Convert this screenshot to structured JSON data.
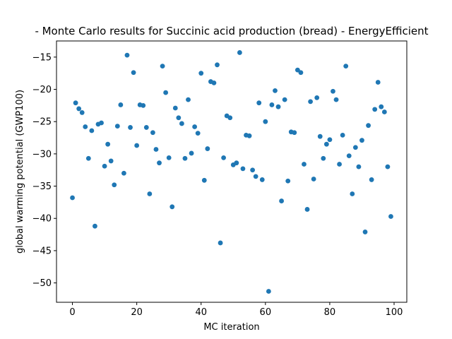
{
  "chart_data": {
    "type": "scatter",
    "title": "- Monte Carlo results for Succinic acid production (bread) - EnergyEfficient",
    "xlabel": "MC iteration",
    "ylabel": "global warming potential (GWP100)",
    "xlim": [
      -4.95,
      103.95
    ],
    "ylim": [
      -53.0,
      -12.5
    ],
    "xticks": [
      0,
      20,
      40,
      60,
      80,
      100
    ],
    "xtick_labels": [
      "0",
      "20",
      "40",
      "60",
      "80",
      "100"
    ],
    "yticks": [
      -50,
      -45,
      -40,
      -35,
      -30,
      -25,
      -20,
      -15
    ],
    "ytick_labels": [
      "−50",
      "−45",
      "−40",
      "−35",
      "−30",
      "−25",
      "−20",
      "−15"
    ],
    "grid": false,
    "legend": "none",
    "marker_color": "#1f77b4",
    "series": [
      {
        "x": [
          0,
          1,
          2,
          3,
          4,
          5,
          6,
          7,
          8,
          9,
          10,
          11,
          12,
          13,
          14,
          15,
          16,
          17,
          18,
          19,
          20,
          21,
          22,
          23,
          24,
          25,
          26,
          27,
          28,
          29,
          30,
          31,
          32,
          33,
          34,
          35,
          36,
          37,
          38,
          39,
          40,
          41,
          42,
          43,
          44,
          45,
          46,
          47,
          48,
          49,
          50,
          51,
          52,
          53,
          54,
          55,
          56,
          57,
          58,
          59,
          60,
          61,
          62,
          63,
          64,
          65,
          66,
          67,
          68,
          69,
          70,
          71,
          72,
          73,
          74,
          75,
          76,
          77,
          78,
          79,
          80,
          81,
          82,
          83,
          84,
          85,
          86,
          87,
          88,
          89,
          90,
          91,
          92,
          93,
          94,
          95,
          96,
          97,
          98,
          99
        ],
        "y": [
          -36.8,
          -22.1,
          -23.0,
          -23.6,
          -25.8,
          -30.7,
          -26.4,
          -41.2,
          -25.4,
          -25.2,
          -31.9,
          -28.5,
          -31.1,
          -34.8,
          -25.7,
          -22.4,
          -33.0,
          -14.7,
          -25.9,
          -17.4,
          -28.7,
          -22.4,
          -22.5,
          -25.9,
          -36.2,
          -26.7,
          -29.3,
          -31.4,
          -16.4,
          -20.5,
          -30.6,
          -38.2,
          -22.9,
          -24.4,
          -25.3,
          -30.7,
          -21.6,
          -29.9,
          -25.8,
          -26.8,
          -17.5,
          -34.1,
          -29.2,
          -18.8,
          -19.0,
          -16.2,
          -43.8,
          -30.6,
          -24.1,
          -24.4,
          -31.7,
          -31.4,
          -14.3,
          -32.3,
          -27.1,
          -27.2,
          -32.5,
          -33.5,
          -22.1,
          -34.0,
          -25.0,
          -51.3,
          -22.4,
          -20.2,
          -22.7,
          -37.3,
          -21.6,
          -34.2,
          -26.6,
          -26.7,
          -17.0,
          -17.4,
          -31.6,
          -38.6,
          -21.9,
          -33.9,
          -21.3,
          -27.3,
          -30.7,
          -28.5,
          -27.8,
          -20.3,
          -21.6,
          -31.6,
          -27.1,
          -16.4,
          -30.3,
          -36.2,
          -29.0,
          -32.0,
          -27.9,
          -42.1,
          -25.6,
          -34.0,
          -23.1,
          -18.9,
          -22.7,
          -23.5,
          -32.0,
          -39.7
        ]
      }
    ]
  }
}
